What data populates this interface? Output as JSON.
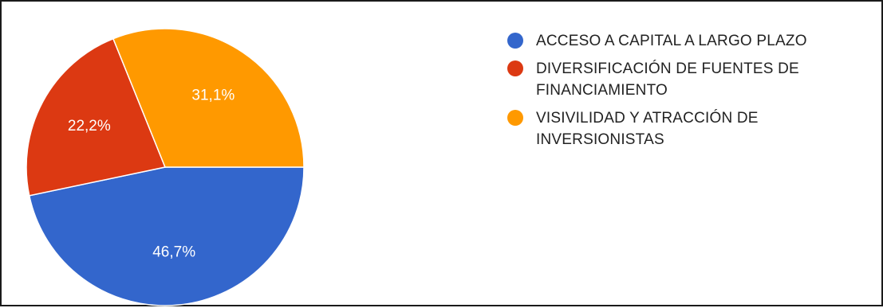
{
  "chart_data": {
    "type": "pie",
    "title": "",
    "slices": [
      {
        "name": "ACCESO A CAPITAL A LARGO PLAZO",
        "value": 46.7,
        "label": "46,7%",
        "color": "#3366cc"
      },
      {
        "name": "DIVERSIFICACIÓN DE FUENTES DE FINANCIAMIENTO",
        "value": 22.2,
        "label": "22,2%",
        "color": "#dc3912"
      },
      {
        "name": "VISIVILIDAD Y ATRACCIÓN DE INVERSIONISTAS",
        "value": 31.1,
        "label": "31,1%",
        "color": "#ff9900"
      }
    ],
    "legend_position": "right"
  },
  "legend": [
    {
      "label": "ACCESO A CAPITAL A LARGO PLAZO",
      "color": "#3366cc"
    },
    {
      "label": "DIVERSIFICACIÓN DE FUENTES DE FINANCIAMIENTO",
      "color": "#dc3912"
    },
    {
      "label": "VISIVILIDAD Y ATRACCIÓN DE INVERSIONISTAS",
      "color": "#ff9900"
    }
  ]
}
